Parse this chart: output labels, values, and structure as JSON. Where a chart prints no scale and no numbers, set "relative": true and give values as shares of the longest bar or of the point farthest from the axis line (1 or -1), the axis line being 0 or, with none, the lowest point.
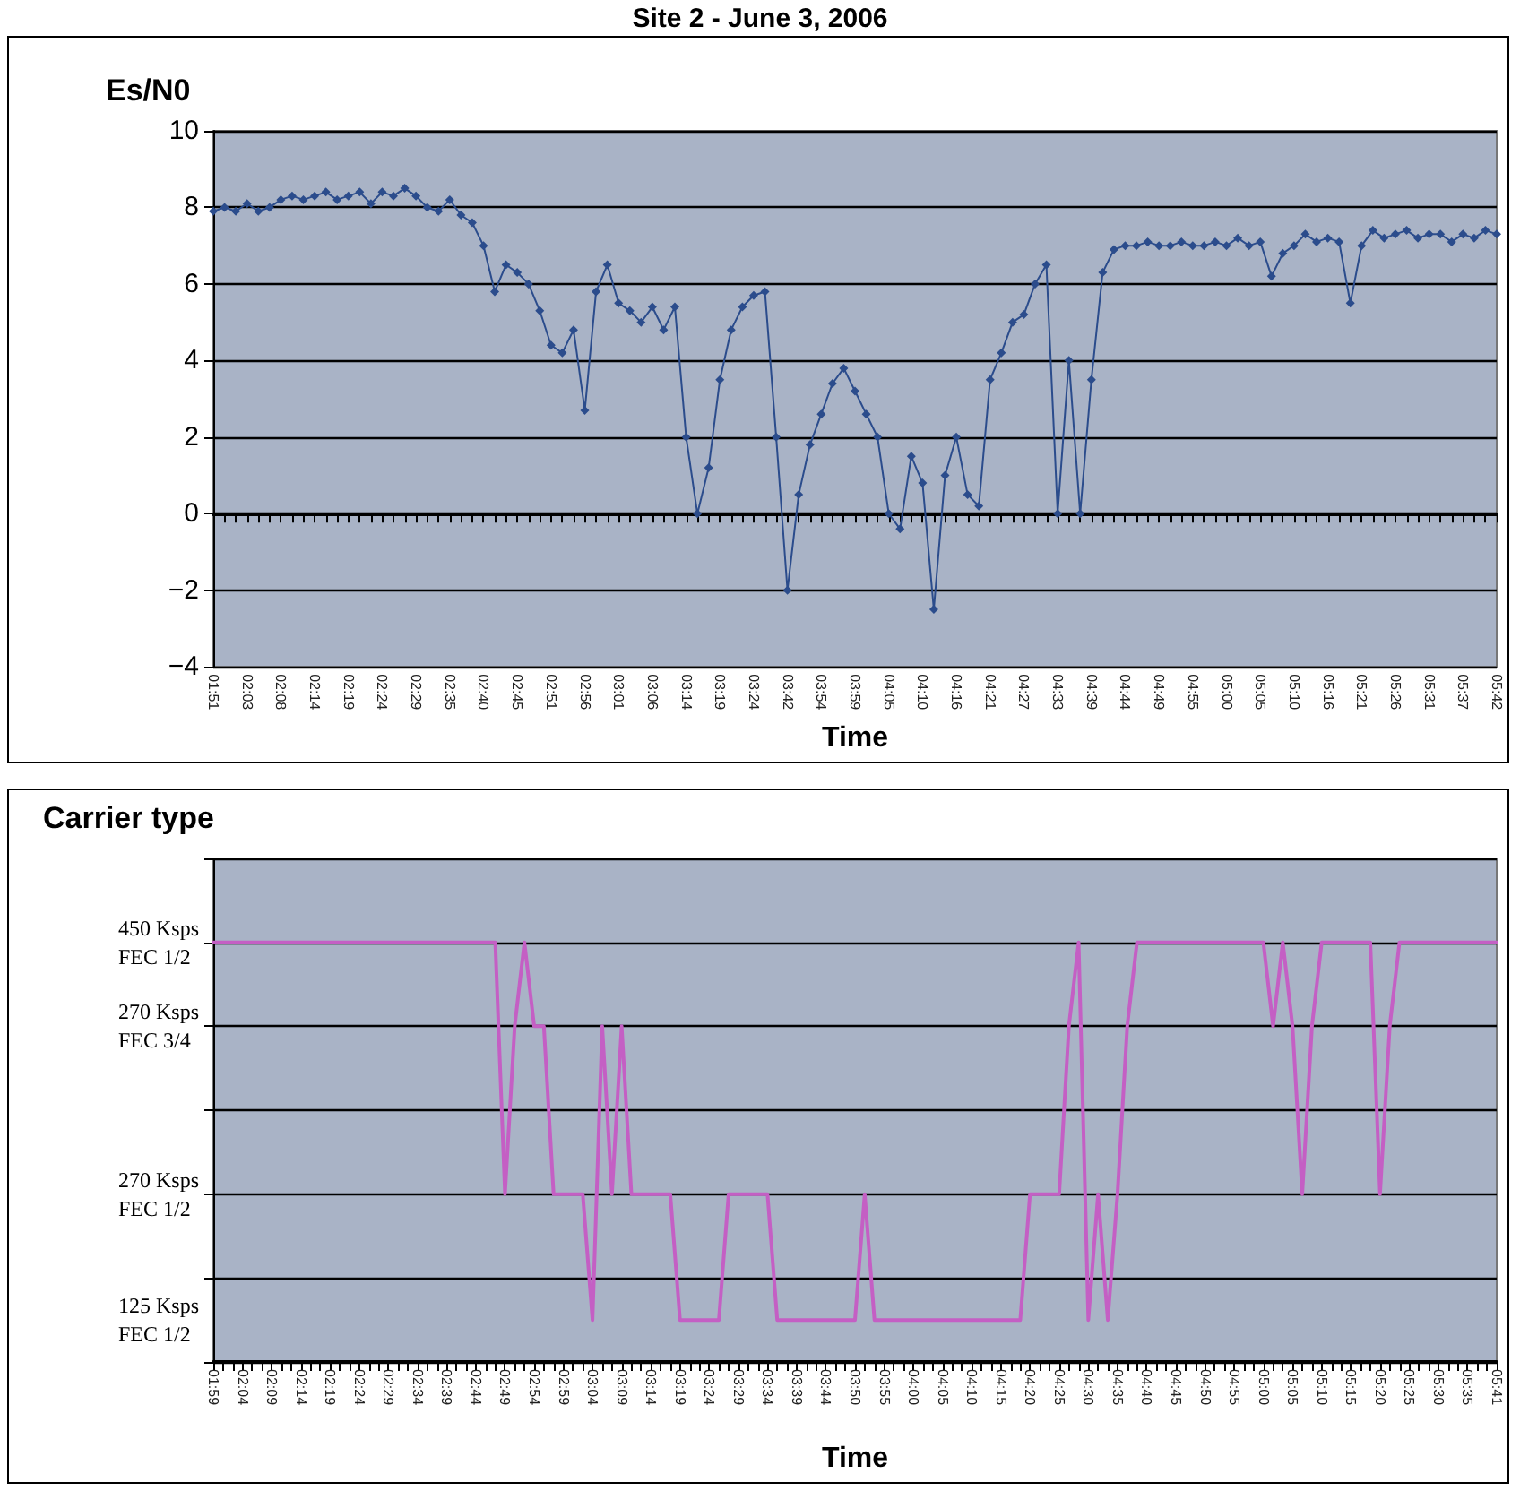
{
  "chart_data": [
    {
      "type": "line",
      "title": "Site 2 - June 3, 2006",
      "ylabel": "Es/N0",
      "xlabel": "Time",
      "color": "#2b4c8c",
      "marker": "diamond",
      "grid": "y",
      "ylim": [
        -4,
        10
      ],
      "yticks": [
        {
          "value": -4,
          "label": "−4"
        },
        {
          "value": -2,
          "label": "−2"
        },
        0,
        2,
        4,
        6,
        8,
        10
      ],
      "categories": [
        "01:51",
        null,
        null,
        "02:03",
        null,
        null,
        "02:08",
        null,
        null,
        "02:14",
        null,
        null,
        "02:19",
        null,
        null,
        "02:24",
        null,
        null,
        "02:29",
        null,
        null,
        "02:35",
        null,
        null,
        "02:40",
        null,
        null,
        "02:45",
        null,
        null,
        "02:51",
        null,
        null,
        "02:56",
        null,
        null,
        "03:01",
        null,
        null,
        "03:06",
        null,
        null,
        "03:14",
        null,
        null,
        "03:19",
        null,
        null,
        "03:24",
        null,
        null,
        "03:42",
        null,
        null,
        "03:54",
        null,
        null,
        "03:59",
        null,
        null,
        "04:05",
        null,
        null,
        "04:10",
        null,
        null,
        "04:16",
        null,
        null,
        "04:21",
        null,
        null,
        "04:27",
        null,
        null,
        "04:33",
        null,
        null,
        "04:39",
        null,
        null,
        "04:44",
        null,
        null,
        "04:49",
        null,
        null,
        "04:55",
        null,
        null,
        "05:00",
        null,
        null,
        "05:05",
        null,
        null,
        "05:10",
        null,
        null,
        "05:16",
        null,
        null,
        "05:21",
        null,
        null,
        "05:26",
        null,
        null,
        "05:31",
        null,
        null,
        "05:37",
        null,
        null,
        "05:42"
      ],
      "values": [
        7.9,
        8.0,
        7.9,
        8.1,
        7.9,
        8.0,
        8.2,
        8.3,
        8.2,
        8.3,
        8.4,
        8.2,
        8.3,
        8.4,
        8.1,
        8.4,
        8.3,
        8.5,
        8.3,
        8.0,
        7.9,
        8.2,
        7.8,
        7.6,
        7.0,
        5.8,
        6.5,
        6.3,
        6.0,
        5.3,
        4.4,
        4.2,
        4.8,
        2.7,
        5.8,
        6.5,
        5.5,
        5.3,
        5.0,
        5.4,
        4.8,
        5.4,
        2.0,
        0,
        1.2,
        3.5,
        4.8,
        5.4,
        5.7,
        5.8,
        2.0,
        -2.0,
        0.5,
        1.8,
        2.6,
        3.4,
        3.8,
        3.2,
        2.6,
        2.0,
        0,
        -0.4,
        1.5,
        0.8,
        -2.5,
        1.0,
        2.0,
        0.5,
        0.2,
        3.5,
        4.2,
        5.0,
        5.2,
        6.0,
        6.5,
        0,
        4.0,
        0,
        3.5,
        6.3,
        6.9,
        7.0,
        7.0,
        7.1,
        7.0,
        7.0,
        7.1,
        7.0,
        7.0,
        7.1,
        7.0,
        7.2,
        7.0,
        7.1,
        6.2,
        6.8,
        7.0,
        7.3,
        7.1,
        7.2,
        7.1,
        5.5,
        7.0,
        7.4,
        7.2,
        7.3,
        7.4,
        7.2,
        7.3,
        7.3,
        7.1,
        7.3,
        7.2,
        7.4,
        7.3
      ]
    },
    {
      "type": "line",
      "ylabel": "Carrier type",
      "xlabel": "Time",
      "color": "#c45fc4",
      "marker": "none",
      "grid": "y",
      "relative": true,
      "annotations": [
        "450 Ksps\nFEC 1/2",
        "270 Ksps\nFEC 3/4",
        "270 Ksps\nFEC 1/2",
        "125 Ksps\nFEC 1/2"
      ],
      "categories": [
        "01:59",
        null,
        null,
        "02:04",
        null,
        null,
        "02:09",
        null,
        null,
        "02:14",
        null,
        null,
        "02:19",
        null,
        null,
        "02:24",
        null,
        null,
        "02:29",
        null,
        null,
        "02:34",
        null,
        null,
        "02:39",
        null,
        null,
        "02:44",
        null,
        null,
        "02:49",
        null,
        null,
        "02:54",
        null,
        null,
        "02:59",
        null,
        null,
        "03:04",
        null,
        null,
        "03:09",
        null,
        null,
        "03:14",
        null,
        null,
        "03:19",
        null,
        null,
        "03:24",
        null,
        null,
        "03:29",
        null,
        null,
        "03:34",
        null,
        null,
        "03:39",
        null,
        null,
        "03:44",
        null,
        null,
        "03:50",
        null,
        null,
        "03:55",
        null,
        null,
        "04:00",
        null,
        null,
        "04:05",
        null,
        null,
        "04:10",
        null,
        null,
        "04:15",
        null,
        null,
        "04:20",
        null,
        null,
        "04:25",
        null,
        null,
        "04:30",
        null,
        null,
        "04:35",
        null,
        null,
        "04:40",
        null,
        null,
        "04:45",
        null,
        null,
        "04:50",
        null,
        null,
        "04:55",
        null,
        null,
        "05:00",
        null,
        null,
        "05:05",
        null,
        null,
        "05:10",
        null,
        null,
        "05:15",
        null,
        null,
        "05:20",
        null,
        null,
        "05:25",
        null,
        null,
        "05:30",
        null,
        null,
        "05:35",
        null,
        null,
        "05:41"
      ],
      "values": [
        1,
        1,
        1,
        1,
        1,
        1,
        1,
        1,
        1,
        1,
        1,
        1,
        1,
        1,
        1,
        1,
        1,
        1,
        1,
        1,
        1,
        1,
        1,
        1,
        1,
        1,
        1,
        1,
        1,
        1,
        0.4,
        0.8,
        1,
        0.8,
        0.8,
        0.4,
        0.4,
        0.4,
        0.4,
        0.1,
        0.8,
        0.4,
        0.8,
        0.4,
        0.4,
        0.4,
        0.4,
        0.4,
        0.1,
        0.1,
        0.1,
        0.1,
        0.1,
        0.4,
        0.4,
        0.4,
        0.4,
        0.4,
        0.1,
        0.1,
        0.1,
        0.1,
        0.1,
        0.1,
        0.1,
        0.1,
        0.1,
        0.4,
        0.1,
        0.1,
        0.1,
        0.1,
        0.1,
        0.1,
        0.1,
        0.1,
        0.1,
        0.1,
        0.1,
        0.1,
        0.1,
        0.1,
        0.1,
        0.1,
        0.4,
        0.4,
        0.4,
        0.4,
        0.8,
        1,
        0.1,
        0.4,
        0.1,
        0.4,
        0.8,
        1,
        1,
        1,
        1,
        1,
        1,
        1,
        1,
        1,
        1,
        1,
        1,
        1,
        1,
        0.8,
        1,
        0.8,
        0.4,
        0.8,
        1,
        1,
        1,
        1,
        1,
        1,
        0.4,
        0.8,
        1,
        1,
        1,
        1,
        1,
        1,
        1,
        1,
        1,
        1,
        1
      ]
    }
  ]
}
